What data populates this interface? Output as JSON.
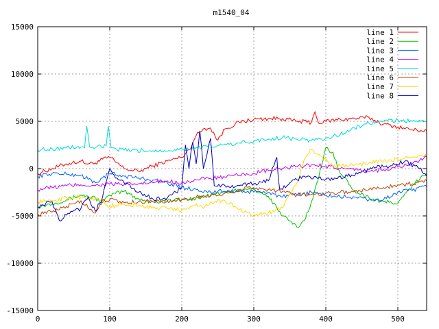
{
  "chart_data": {
    "type": "line",
    "title": "m1540_04",
    "xlabel": "",
    "ylabel": "",
    "xlim": [
      0,
      540
    ],
    "ylim": [
      -15000,
      15000
    ],
    "xticks": [
      0,
      100,
      200,
      300,
      400,
      500
    ],
    "yticks": [
      -15000,
      -10000,
      -5000,
      0,
      5000,
      10000,
      15000
    ],
    "grid": true,
    "legend_position": "top-right",
    "series": [
      {
        "name": "line 1",
        "color": "#ff0000",
        "x": [
          0,
          20,
          40,
          60,
          70,
          80,
          90,
          100,
          110,
          120,
          140,
          160,
          180,
          200,
          210,
          220,
          230,
          240,
          250,
          260,
          280,
          300,
          320,
          340,
          360,
          380,
          385,
          390,
          400,
          420,
          440,
          460,
          480,
          500,
          520,
          540
        ],
        "y": [
          -500,
          0,
          500,
          800,
          500,
          600,
          1000,
          1200,
          600,
          0,
          -300,
          300,
          800,
          1200,
          2000,
          3500,
          4200,
          4300,
          3000,
          4200,
          4900,
          5200,
          5300,
          5300,
          5000,
          4900,
          6000,
          4800,
          5000,
          5200,
          5300,
          5400,
          4700,
          4400,
          4100,
          4000
        ]
      },
      {
        "name": "line 2",
        "color": "#00c000",
        "x": [
          0,
          20,
          40,
          60,
          80,
          90,
          100,
          120,
          140,
          160,
          180,
          200,
          220,
          240,
          260,
          280,
          300,
          320,
          340,
          360,
          370,
          380,
          390,
          400,
          410,
          420,
          440,
          460,
          480,
          500,
          520,
          540
        ],
        "y": [
          -4000,
          -3700,
          -3300,
          -2800,
          -3100,
          -3600,
          -2800,
          -2400,
          -3200,
          -3500,
          -3400,
          -3300,
          -3100,
          -2800,
          -2500,
          -2300,
          -2200,
          -2900,
          -5000,
          -6200,
          -5500,
          -3500,
          -1000,
          2200,
          1700,
          -500,
          -2300,
          -3100,
          -3500,
          -3700,
          -1800,
          -500
        ]
      },
      {
        "name": "line 3",
        "color": "#0060ff",
        "x": [
          0,
          20,
          40,
          60,
          80,
          90,
          100,
          120,
          140,
          160,
          180,
          200,
          220,
          240,
          260,
          280,
          300,
          320,
          340,
          360,
          380,
          400,
          420,
          440,
          460,
          480,
          500,
          520,
          540
        ],
        "y": [
          -800,
          -500,
          -600,
          -700,
          -1500,
          -1000,
          -500,
          -800,
          -1000,
          -1200,
          -1500,
          -2000,
          -2200,
          -2500,
          -2400,
          -2400,
          -2500,
          -2500,
          -3000,
          -2800,
          -2500,
          -2800,
          -3000,
          -3000,
          -3300,
          -3300,
          -2500,
          -2300,
          -1900
        ]
      },
      {
        "name": "line 4",
        "color": "#c000ff",
        "x": [
          0,
          20,
          40,
          60,
          80,
          100,
          120,
          140,
          160,
          180,
          200,
          220,
          240,
          260,
          280,
          300,
          320,
          340,
          360,
          380,
          400,
          420,
          440,
          460,
          480,
          500,
          520,
          540
        ],
        "y": [
          -2200,
          -2000,
          -1800,
          -1700,
          -1800,
          -1600,
          -1700,
          -1600,
          -1500,
          -1300,
          -1500,
          -1200,
          -1000,
          -900,
          -700,
          -500,
          -200,
          0,
          200,
          400,
          300,
          0,
          -200,
          -300,
          -100,
          200,
          500,
          1200
        ]
      },
      {
        "name": "line 5",
        "color": "#00d8d8",
        "x": [
          0,
          20,
          40,
          60,
          65,
          68,
          72,
          80,
          95,
          98,
          102,
          110,
          130,
          160,
          190,
          220,
          250,
          280,
          300,
          320,
          340,
          360,
          380,
          400,
          420,
          440,
          460,
          480,
          500,
          520,
          540
        ],
        "y": [
          2000,
          2100,
          2200,
          2300,
          2200,
          4500,
          2300,
          2200,
          2400,
          4500,
          2200,
          2000,
          1900,
          1900,
          2000,
          2200,
          2400,
          2700,
          2900,
          3100,
          3300,
          3100,
          3000,
          3200,
          3600,
          4300,
          4800,
          5000,
          5100,
          5000,
          5000
        ]
      },
      {
        "name": "line 6",
        "color": "#c04000",
        "x": [
          0,
          20,
          40,
          60,
          80,
          90,
          100,
          120,
          140,
          160,
          180,
          200,
          220,
          240,
          260,
          280,
          300,
          320,
          340,
          360,
          380,
          400,
          420,
          440,
          460,
          480,
          500,
          520,
          540
        ],
        "y": [
          -4800,
          -4600,
          -4000,
          -3400,
          -4700,
          -3300,
          -3300,
          -3600,
          -3500,
          -3500,
          -3400,
          -3300,
          -3000,
          -2900,
          -2600,
          -2200,
          -2000,
          -2200,
          -2400,
          -2800,
          -2700,
          -2600,
          -2500,
          -2400,
          -2200,
          -2000,
          -1700,
          -1600,
          -1300
        ]
      },
      {
        "name": "line 7",
        "color": "#ffd800",
        "x": [
          0,
          20,
          40,
          60,
          80,
          90,
          100,
          120,
          140,
          160,
          180,
          200,
          220,
          230,
          240,
          260,
          280,
          300,
          320,
          340,
          360,
          370,
          380,
          390,
          400,
          410,
          420,
          440,
          460,
          480,
          500,
          520,
          540
        ],
        "y": [
          -3500,
          -3400,
          -3100,
          -3000,
          -3200,
          -3500,
          -4000,
          -3800,
          -3900,
          -4100,
          -4200,
          -4400,
          -3700,
          -4200,
          -3500,
          -3400,
          -4300,
          -4900,
          -4700,
          -4100,
          -1500,
          1000,
          2000,
          1500,
          1000,
          200,
          300,
          400,
          600,
          800,
          1000,
          1200,
          1300
        ]
      },
      {
        "name": "line 8",
        "color": "#0000c0",
        "x": [
          0,
          20,
          30,
          40,
          60,
          70,
          80,
          90,
          100,
          110,
          120,
          140,
          160,
          180,
          200,
          205,
          210,
          215,
          220,
          225,
          230,
          235,
          240,
          245,
          260,
          280,
          300,
          320,
          332,
          334,
          336,
          350,
          370,
          390,
          410,
          430,
          450,
          470,
          490,
          510,
          530,
          540
        ],
        "y": [
          -4000,
          -3500,
          -5500,
          -4900,
          -4200,
          -3000,
          -4500,
          -3000,
          0,
          -1000,
          -1500,
          -2500,
          -3200,
          -3100,
          -2000,
          2500,
          0,
          2800,
          500,
          4000,
          0,
          1500,
          3200,
          -1800,
          -1800,
          -1800,
          -1600,
          -1300,
          1200,
          -1000,
          -2200,
          -1500,
          -800,
          -1000,
          -1200,
          -800,
          -300,
          100,
          300,
          800,
          0,
          -800
        ]
      }
    ]
  }
}
